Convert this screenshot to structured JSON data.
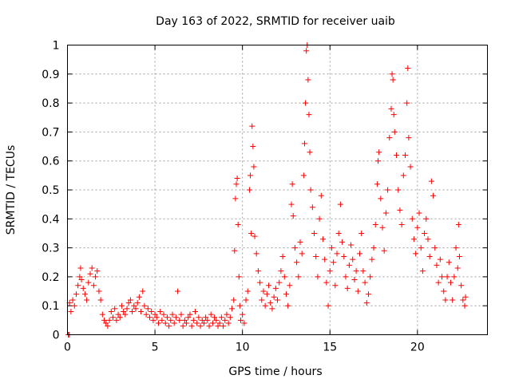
{
  "chart_data": {
    "type": "scatter",
    "title": "Day 163 of 2022, SRMTID for receiver uaib",
    "xlabel": "GPS time / hours",
    "ylabel": "SRMTID / TECUs",
    "xlim": [
      0,
      24
    ],
    "ylim": [
      0,
      1
    ],
    "xticks": [
      0,
      5,
      10,
      15,
      20
    ],
    "xtick_labels": [
      "0",
      "5",
      "10",
      "15",
      "20"
    ],
    "yticks": [
      0,
      0.1,
      0.2,
      0.3,
      0.4,
      0.5,
      0.6,
      0.7,
      0.8,
      0.9,
      1
    ],
    "ytick_labels": [
      "0",
      "0.1",
      "0.2",
      "0.3",
      "0.4",
      "0.5",
      "0.6",
      "0.7",
      "0.8",
      "0.9",
      "1"
    ],
    "grid": true,
    "marker": "+",
    "color": "#ff0000",
    "series": [
      {
        "name": "SRMTID",
        "points": [
          [
            0.05,
            0.0
          ],
          [
            0.1,
            0.0
          ],
          [
            0.12,
            0.11
          ],
          [
            0.2,
            0.08
          ],
          [
            0.3,
            0.12
          ],
          [
            0.4,
            0.1
          ],
          [
            0.5,
            0.14
          ],
          [
            0.6,
            0.17
          ],
          [
            0.7,
            0.2
          ],
          [
            0.75,
            0.23
          ],
          [
            0.8,
            0.19
          ],
          [
            0.9,
            0.16
          ],
          [
            1.0,
            0.14
          ],
          [
            1.1,
            0.12
          ],
          [
            1.2,
            0.18
          ],
          [
            1.3,
            0.21
          ],
          [
            1.4,
            0.23
          ],
          [
            1.5,
            0.17
          ],
          [
            1.6,
            0.2
          ],
          [
            1.7,
            0.22
          ],
          [
            1.8,
            0.15
          ],
          [
            1.9,
            0.12
          ],
          [
            2.0,
            0.07
          ],
          [
            2.1,
            0.05
          ],
          [
            2.2,
            0.04
          ],
          [
            2.3,
            0.03
          ],
          [
            2.4,
            0.05
          ],
          [
            2.5,
            0.08
          ],
          [
            2.6,
            0.06
          ],
          [
            2.7,
            0.09
          ],
          [
            2.8,
            0.05
          ],
          [
            2.9,
            0.07
          ],
          [
            3.0,
            0.06
          ],
          [
            3.1,
            0.1
          ],
          [
            3.2,
            0.08
          ],
          [
            3.3,
            0.07
          ],
          [
            3.4,
            0.09
          ],
          [
            3.5,
            0.11
          ],
          [
            3.6,
            0.12
          ],
          [
            3.7,
            0.08
          ],
          [
            3.8,
            0.1
          ],
          [
            3.9,
            0.09
          ],
          [
            4.0,
            0.11
          ],
          [
            4.1,
            0.13
          ],
          [
            4.2,
            0.08
          ],
          [
            4.3,
            0.15
          ],
          [
            4.4,
            0.1
          ],
          [
            4.5,
            0.07
          ],
          [
            4.6,
            0.09
          ],
          [
            4.7,
            0.06
          ],
          [
            4.8,
            0.08
          ],
          [
            4.9,
            0.05
          ],
          [
            5.0,
            0.07
          ],
          [
            5.1,
            0.06
          ],
          [
            5.2,
            0.04
          ],
          [
            5.3,
            0.08
          ],
          [
            5.4,
            0.05
          ],
          [
            5.5,
            0.07
          ],
          [
            5.6,
            0.04
          ],
          [
            5.7,
            0.06
          ],
          [
            5.8,
            0.03
          ],
          [
            5.9,
            0.05
          ],
          [
            6.0,
            0.07
          ],
          [
            6.1,
            0.04
          ],
          [
            6.2,
            0.06
          ],
          [
            6.3,
            0.15
          ],
          [
            6.4,
            0.05
          ],
          [
            6.5,
            0.07
          ],
          [
            6.6,
            0.03
          ],
          [
            6.7,
            0.05
          ],
          [
            6.8,
            0.04
          ],
          [
            6.9,
            0.06
          ],
          [
            7.0,
            0.07
          ],
          [
            7.1,
            0.03
          ],
          [
            7.2,
            0.05
          ],
          [
            7.3,
            0.08
          ],
          [
            7.4,
            0.04
          ],
          [
            7.5,
            0.06
          ],
          [
            7.6,
            0.03
          ],
          [
            7.7,
            0.05
          ],
          [
            7.8,
            0.04
          ],
          [
            7.9,
            0.06
          ],
          [
            8.0,
            0.05
          ],
          [
            8.1,
            0.03
          ],
          [
            8.2,
            0.07
          ],
          [
            8.3,
            0.04
          ],
          [
            8.4,
            0.06
          ],
          [
            8.5,
            0.05
          ],
          [
            8.6,
            0.03
          ],
          [
            8.7,
            0.04
          ],
          [
            8.8,
            0.06
          ],
          [
            8.9,
            0.03
          ],
          [
            9.0,
            0.05
          ],
          [
            9.1,
            0.07
          ],
          [
            9.2,
            0.04
          ],
          [
            9.3,
            0.06
          ],
          [
            9.4,
            0.09
          ],
          [
            9.5,
            0.12
          ],
          [
            9.55,
            0.29
          ],
          [
            9.6,
            0.47
          ],
          [
            9.65,
            0.52
          ],
          [
            9.7,
            0.54
          ],
          [
            9.75,
            0.38
          ],
          [
            9.8,
            0.2
          ],
          [
            9.85,
            0.1
          ],
          [
            9.9,
            0.05
          ],
          [
            10.0,
            0.07
          ],
          [
            10.1,
            0.04
          ],
          [
            10.2,
            0.12
          ],
          [
            10.3,
            0.15
          ],
          [
            10.4,
            0.5
          ],
          [
            10.45,
            0.55
          ],
          [
            10.5,
            0.35
          ],
          [
            10.55,
            0.72
          ],
          [
            10.6,
            0.65
          ],
          [
            10.65,
            0.58
          ],
          [
            10.7,
            0.34
          ],
          [
            10.8,
            0.28
          ],
          [
            10.9,
            0.22
          ],
          [
            11.0,
            0.18
          ],
          [
            11.1,
            0.12
          ],
          [
            11.2,
            0.15
          ],
          [
            11.3,
            0.1
          ],
          [
            11.4,
            0.14
          ],
          [
            11.5,
            0.17
          ],
          [
            11.6,
            0.11
          ],
          [
            11.7,
            0.09
          ],
          [
            11.8,
            0.13
          ],
          [
            11.9,
            0.16
          ],
          [
            12.0,
            0.12
          ],
          [
            12.1,
            0.18
          ],
          [
            12.2,
            0.22
          ],
          [
            12.3,
            0.27
          ],
          [
            12.4,
            0.2
          ],
          [
            12.5,
            0.14
          ],
          [
            12.6,
            0.1
          ],
          [
            12.7,
            0.17
          ],
          [
            12.8,
            0.45
          ],
          [
            12.85,
            0.52
          ],
          [
            12.9,
            0.41
          ],
          [
            13.0,
            0.3
          ],
          [
            13.1,
            0.25
          ],
          [
            13.2,
            0.2
          ],
          [
            13.3,
            0.32
          ],
          [
            13.4,
            0.28
          ],
          [
            13.5,
            0.55
          ],
          [
            13.55,
            0.66
          ],
          [
            13.6,
            0.8
          ],
          [
            13.65,
            0.98
          ],
          [
            13.7,
            1.0
          ],
          [
            13.75,
            0.88
          ],
          [
            13.8,
            0.76
          ],
          [
            13.85,
            0.63
          ],
          [
            13.9,
            0.5
          ],
          [
            14.0,
            0.44
          ],
          [
            14.1,
            0.35
          ],
          [
            14.2,
            0.27
          ],
          [
            14.3,
            0.2
          ],
          [
            14.4,
            0.4
          ],
          [
            14.5,
            0.48
          ],
          [
            14.6,
            0.33
          ],
          [
            14.7,
            0.26
          ],
          [
            14.8,
            0.18
          ],
          [
            14.9,
            0.1
          ],
          [
            15.0,
            0.22
          ],
          [
            15.1,
            0.3
          ],
          [
            15.2,
            0.25
          ],
          [
            15.3,
            0.17
          ],
          [
            15.4,
            0.28
          ],
          [
            15.5,
            0.35
          ],
          [
            15.6,
            0.45
          ],
          [
            15.7,
            0.32
          ],
          [
            15.8,
            0.27
          ],
          [
            15.9,
            0.2
          ],
          [
            16.0,
            0.16
          ],
          [
            16.1,
            0.24
          ],
          [
            16.2,
            0.31
          ],
          [
            16.3,
            0.26
          ],
          [
            16.4,
            0.19
          ],
          [
            16.5,
            0.22
          ],
          [
            16.6,
            0.15
          ],
          [
            16.7,
            0.28
          ],
          [
            16.8,
            0.35
          ],
          [
            16.9,
            0.22
          ],
          [
            17.0,
            0.18
          ],
          [
            17.1,
            0.11
          ],
          [
            17.2,
            0.14
          ],
          [
            17.3,
            0.2
          ],
          [
            17.4,
            0.26
          ],
          [
            17.5,
            0.3
          ],
          [
            17.6,
            0.38
          ],
          [
            17.7,
            0.52
          ],
          [
            17.75,
            0.6
          ],
          [
            17.8,
            0.63
          ],
          [
            17.9,
            0.47
          ],
          [
            18.0,
            0.37
          ],
          [
            18.1,
            0.29
          ],
          [
            18.2,
            0.42
          ],
          [
            18.3,
            0.5
          ],
          [
            18.4,
            0.68
          ],
          [
            18.5,
            0.78
          ],
          [
            18.55,
            0.9
          ],
          [
            18.6,
            0.88
          ],
          [
            18.65,
            0.76
          ],
          [
            18.7,
            0.7
          ],
          [
            18.8,
            0.62
          ],
          [
            18.9,
            0.5
          ],
          [
            19.0,
            0.43
          ],
          [
            19.1,
            0.38
          ],
          [
            19.2,
            0.55
          ],
          [
            19.3,
            0.62
          ],
          [
            19.4,
            0.8
          ],
          [
            19.45,
            0.92
          ],
          [
            19.5,
            0.68
          ],
          [
            19.6,
            0.58
          ],
          [
            19.7,
            0.4
          ],
          [
            19.8,
            0.33
          ],
          [
            19.9,
            0.28
          ],
          [
            20.0,
            0.37
          ],
          [
            20.1,
            0.42
          ],
          [
            20.2,
            0.3
          ],
          [
            20.3,
            0.22
          ],
          [
            20.4,
            0.35
          ],
          [
            20.5,
            0.4
          ],
          [
            20.6,
            0.33
          ],
          [
            20.7,
            0.27
          ],
          [
            20.8,
            0.53
          ],
          [
            20.9,
            0.48
          ],
          [
            21.0,
            0.3
          ],
          [
            21.1,
            0.24
          ],
          [
            21.2,
            0.18
          ],
          [
            21.3,
            0.26
          ],
          [
            21.4,
            0.2
          ],
          [
            21.5,
            0.15
          ],
          [
            21.6,
            0.12
          ],
          [
            21.7,
            0.2
          ],
          [
            21.8,
            0.25
          ],
          [
            21.9,
            0.18
          ],
          [
            22.0,
            0.12
          ],
          [
            22.1,
            0.2
          ],
          [
            22.2,
            0.3
          ],
          [
            22.3,
            0.23
          ],
          [
            22.35,
            0.38
          ],
          [
            22.4,
            0.27
          ],
          [
            22.5,
            0.17
          ],
          [
            22.6,
            0.12
          ],
          [
            22.7,
            0.1
          ],
          [
            22.75,
            0.13
          ]
        ]
      }
    ]
  }
}
